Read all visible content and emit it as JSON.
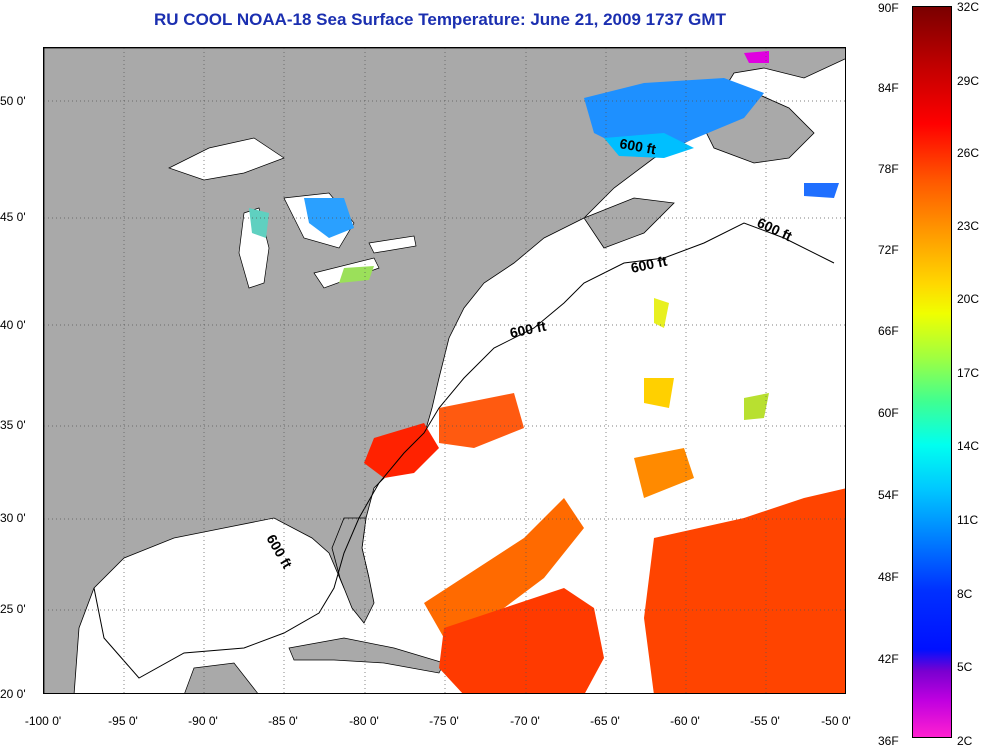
{
  "title": "RU COOL  NOAA-18  Sea Surface Temperature:  June 21, 2009 1737 GMT",
  "x_ticks": [
    "-100 0'",
    "-95 0'",
    "-90 0'",
    "-85 0'",
    "-80 0'",
    "-75 0'",
    "-70 0'",
    "-65 0'",
    "-60 0'",
    "-55 0'",
    "-50 0'"
  ],
  "y_ticks": [
    "50 0'",
    "45 0'",
    "40 0'",
    "35 0'",
    "30 0'",
    "25 0'",
    "20 0'"
  ],
  "colorbar": {
    "fahrenheit": [
      "90F",
      "84F",
      "78F",
      "72F",
      "66F",
      "60F",
      "54F",
      "48F",
      "42F",
      "36F"
    ],
    "celsius": [
      "32C",
      "29C",
      "26C",
      "23C",
      "20C",
      "17C",
      "14C",
      "11C",
      "8C",
      "5C",
      "2C"
    ]
  },
  "depth_labels": [
    "600 ft",
    "600 ft",
    "600 ft",
    "600 ft",
    "600 ft"
  ],
  "colors": {
    "land": "#a9a9a9",
    "ocean_nodata": "#ffffff",
    "title": "#1b2fb0",
    "grid": "#555555"
  }
}
